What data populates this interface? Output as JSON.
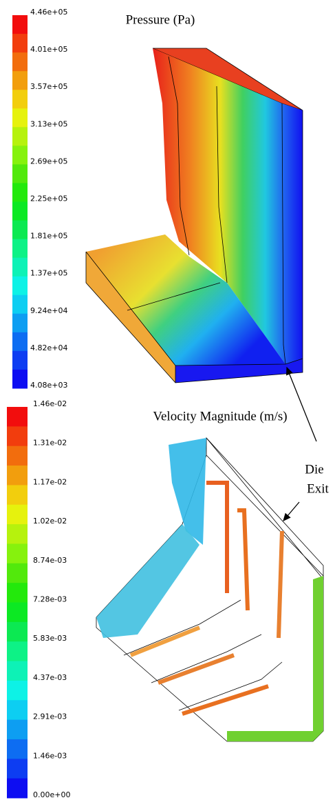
{
  "panels": [
    {
      "title": "Pressure (Pa)",
      "legend_labels": [
        "4.46e+05",
        "4.01e+05",
        "3.57e+05",
        "3.13e+05",
        "2.69e+05",
        "2.25e+05",
        "1.81e+05",
        "1.37e+05",
        "9.24e+04",
        "4.82e+04",
        "4.08e+03"
      ]
    },
    {
      "title": "Velocity Magnitude (m/s)",
      "legend_labels": [
        "1.46e-02",
        "1.31e-02",
        "1.17e-02",
        "1.02e-02",
        "8.74e-03",
        "7.28e-03",
        "5.83e-03",
        "4.37e-03",
        "2.91e-03",
        "1.46e-03",
        "0.00e+00"
      ]
    }
  ],
  "annotation": [
    "Die",
    "Exit"
  ]
}
